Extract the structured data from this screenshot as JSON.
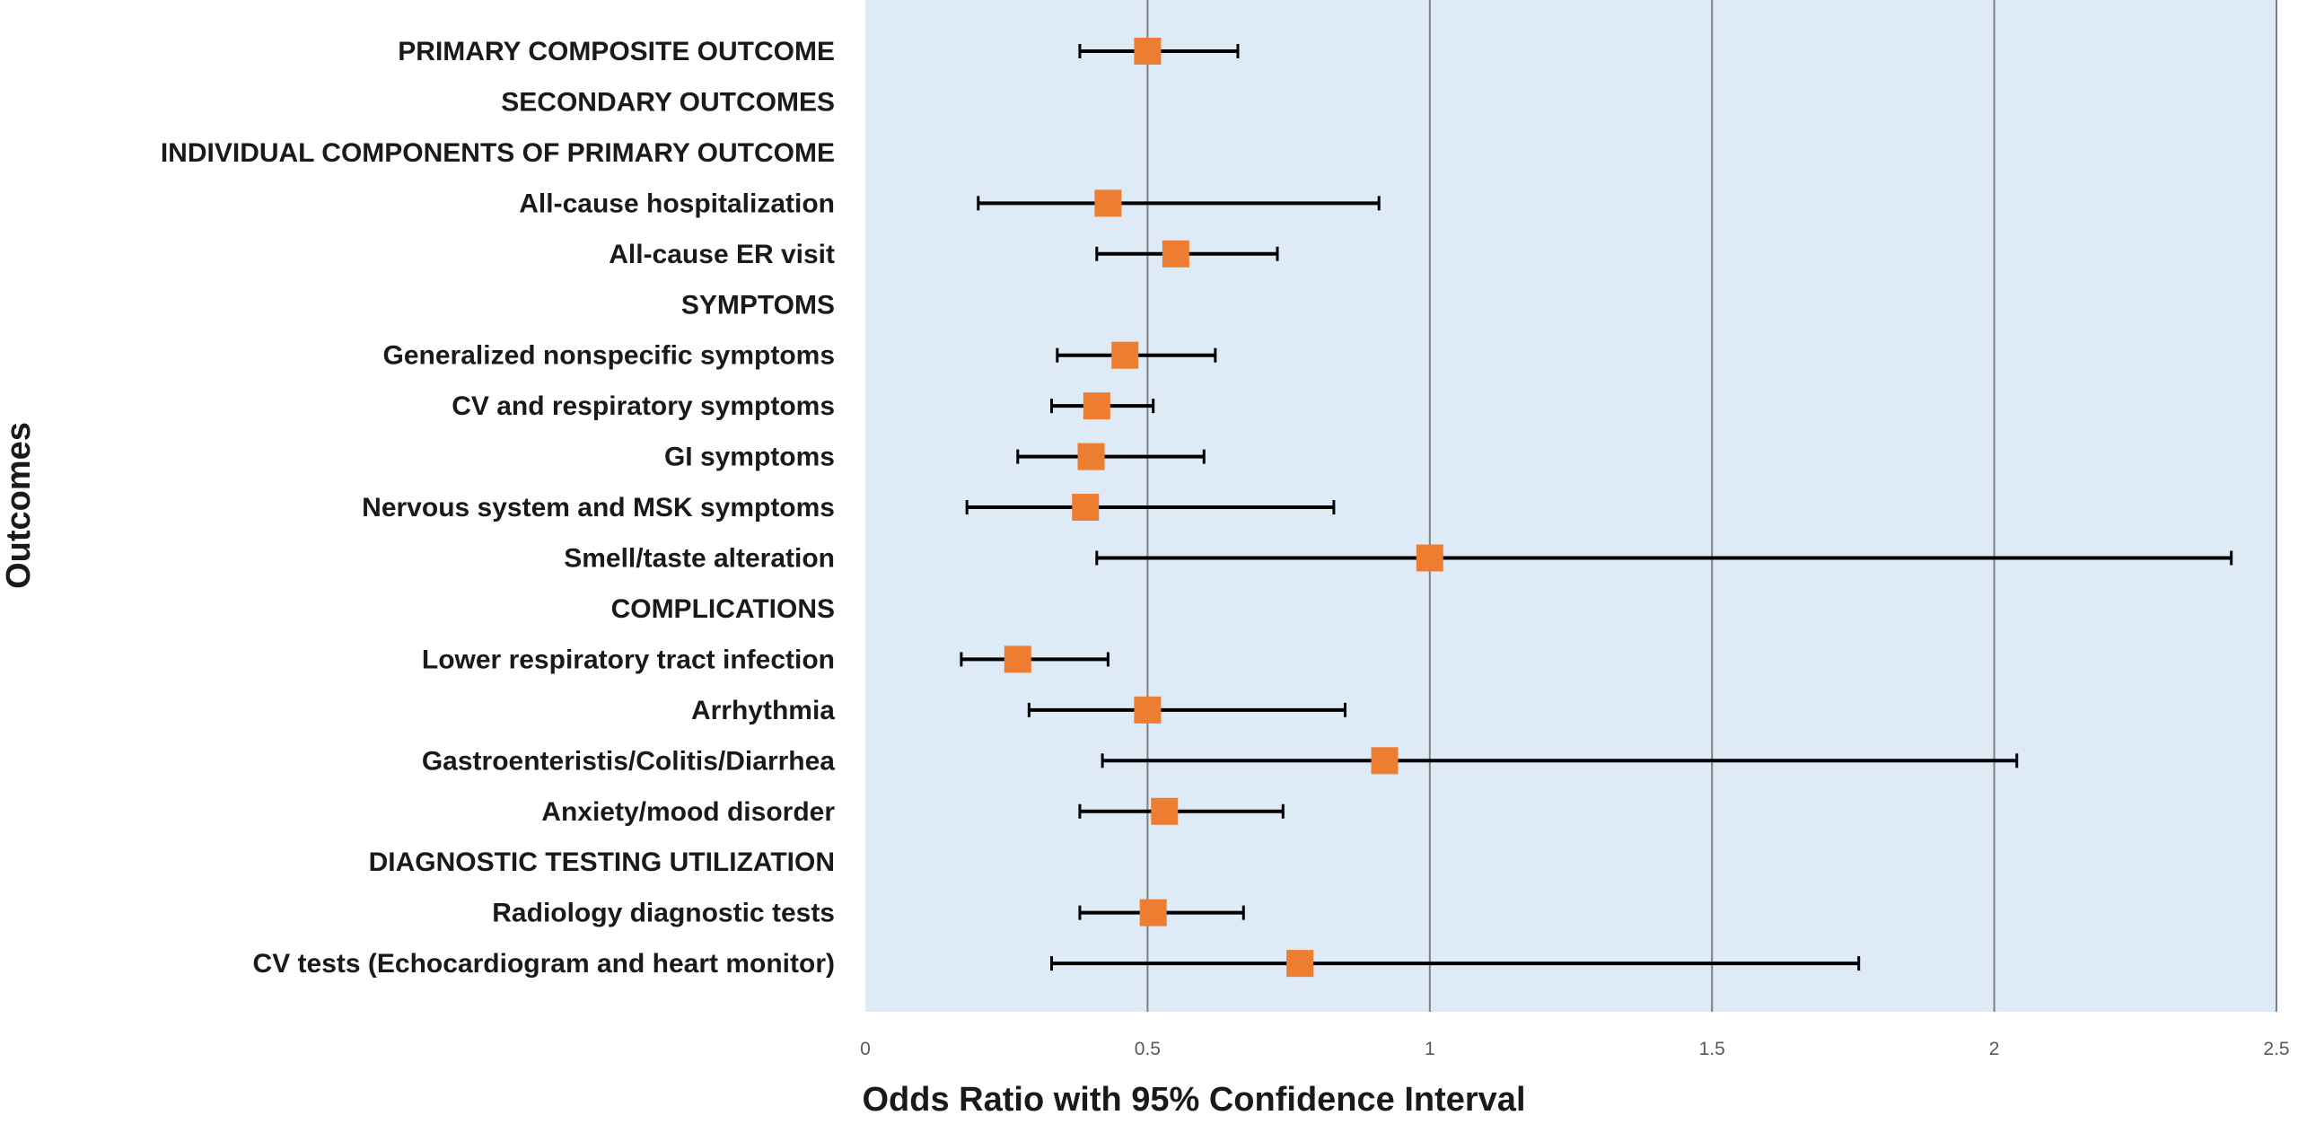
{
  "chart_data": {
    "type": "forest",
    "xlabel": "Odds Ratio with 95% Confidence Interval",
    "ylabel": "Outcomes",
    "xlim": [
      0,
      2.5
    ],
    "xticks": [
      "0",
      "0.5",
      "1",
      "1.5",
      "2",
      "2.5"
    ],
    "grid": true,
    "colors": {
      "plot_bg": "#deeaf6",
      "marker": "#ed7d31",
      "whisker": "#000000",
      "gridline": "#7f7f7f"
    },
    "rows": [
      {
        "label": "PRIMARY COMPOSITE OUTCOME",
        "or": 0.5,
        "lo": 0.38,
        "hi": 0.66
      },
      {
        "label": "SECONDARY OUTCOMES"
      },
      {
        "label": "INDIVIDUAL COMPONENTS OF PRIMARY OUTCOME"
      },
      {
        "label": "All-cause hospitalization",
        "or": 0.43,
        "lo": 0.2,
        "hi": 0.91
      },
      {
        "label": "All-cause ER visit",
        "or": 0.55,
        "lo": 0.41,
        "hi": 0.73
      },
      {
        "label": "SYMPTOMS"
      },
      {
        "label": "Generalized nonspecific symptoms",
        "or": 0.46,
        "lo": 0.34,
        "hi": 0.62
      },
      {
        "label": "CV and respiratory symptoms",
        "or": 0.41,
        "lo": 0.33,
        "hi": 0.51
      },
      {
        "label": "GI symptoms",
        "or": 0.4,
        "lo": 0.27,
        "hi": 0.6
      },
      {
        "label": "Nervous system and MSK symptoms",
        "or": 0.39,
        "lo": 0.18,
        "hi": 0.83
      },
      {
        "label": "Smell/taste alteration",
        "or": 1.0,
        "lo": 0.41,
        "hi": 2.42
      },
      {
        "label": "COMPLICATIONS"
      },
      {
        "label": "Lower respiratory tract infection",
        "or": 0.27,
        "lo": 0.17,
        "hi": 0.43
      },
      {
        "label": "Arrhythmia",
        "or": 0.5,
        "lo": 0.29,
        "hi": 0.85
      },
      {
        "label": "Gastroenteristis/Colitis/Diarrhea",
        "or": 0.92,
        "lo": 0.42,
        "hi": 2.04
      },
      {
        "label": "Anxiety/mood disorder",
        "or": 0.53,
        "lo": 0.38,
        "hi": 0.74
      },
      {
        "label": "DIAGNOSTIC TESTING UTILIZATION"
      },
      {
        "label": "Radiology diagnostic tests",
        "or": 0.51,
        "lo": 0.38,
        "hi": 0.67
      },
      {
        "label": "CV tests (Echocardiogram and heart monitor)",
        "or": 0.77,
        "lo": 0.33,
        "hi": 1.76
      }
    ]
  }
}
